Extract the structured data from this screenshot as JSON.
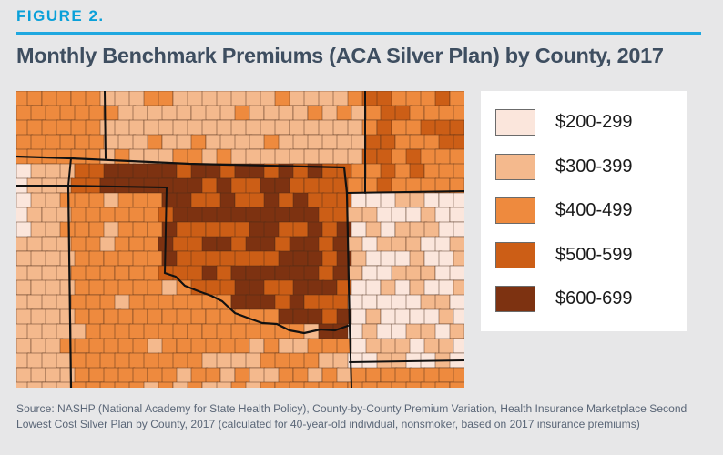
{
  "header": {
    "figure_label": "FIGURE 2.",
    "title": "Monthly Benchmark Premiums (ACA Silver Plan) by County, 2017"
  },
  "legend": {
    "items": [
      {
        "label": "$200-299",
        "color": "#fbe6dc"
      },
      {
        "label": "$300-399",
        "color": "#f4b98d"
      },
      {
        "label": "$400-499",
        "color": "#ee8a3e"
      },
      {
        "label": "$500-599",
        "color": "#cc5e16"
      },
      {
        "label": "$600-699",
        "color": "#7d3211"
      }
    ]
  },
  "map": {
    "colors": {
      "tier_200_299": "#fbe6dc",
      "tier_300_399": "#f4b98d",
      "tier_400_499": "#ee8a3e",
      "tier_500_599": "#cc5e16",
      "tier_600_699": "#7d3211",
      "county_line": "#4a2a18",
      "state_line": "#111111"
    }
  },
  "footer": {
    "source_line1": "Source: NASHP (National Academy for State Health Policy), County-by-County Premium Variation, Health Insurance Marketplace Second",
    "source_line2": "Lowest Cost Silver Plan by County, 2017 (calculated for 40-year-old individual, nonsmoker, based on 2017 insurance premiums)"
  }
}
